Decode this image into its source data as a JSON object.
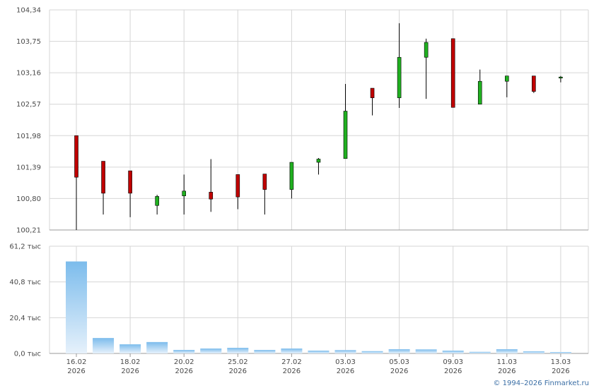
{
  "copyright": "© 1994–2026 Finmarket.ru",
  "colors": {
    "up": "#20b020",
    "down": "#c00000",
    "volume_top": "#7cbcec",
    "volume_bottom": "#e6f1fb",
    "grid": "#d6d6d6",
    "axis": "#9a9a9a"
  },
  "chart_data": [
    {
      "type": "candlestick",
      "title": "",
      "ylim": [
        100.21,
        104.34
      ],
      "yticks": [
        "104,34",
        "103,75",
        "103,16",
        "102,57",
        "101,98",
        "101,39",
        "100,80",
        "100,21"
      ],
      "ytick_values": [
        104.34,
        103.75,
        103.16,
        102.57,
        101.98,
        101.39,
        100.8,
        100.21
      ],
      "candles": [
        {
          "o": 101.98,
          "h": 101.98,
          "l": 100.21,
          "c": 101.2
        },
        {
          "o": 101.5,
          "h": 101.5,
          "l": 100.5,
          "c": 100.9
        },
        {
          "o": 101.32,
          "h": 101.32,
          "l": 100.45,
          "c": 100.9
        },
        {
          "o": 100.67,
          "h": 100.87,
          "l": 100.5,
          "c": 100.84
        },
        {
          "o": 100.85,
          "h": 101.25,
          "l": 100.5,
          "c": 100.94
        },
        {
          "o": 100.92,
          "h": 101.54,
          "l": 100.55,
          "c": 100.79
        },
        {
          "o": 101.25,
          "h": 101.25,
          "l": 100.6,
          "c": 100.83
        },
        {
          "o": 101.26,
          "h": 101.26,
          "l": 100.5,
          "c": 100.97
        },
        {
          "o": 100.97,
          "h": 101.48,
          "l": 100.8,
          "c": 101.48
        },
        {
          "o": 101.48,
          "h": 101.56,
          "l": 101.25,
          "c": 101.54
        },
        {
          "o": 101.55,
          "h": 102.95,
          "l": 101.55,
          "c": 102.44
        },
        {
          "o": 102.87,
          "h": 102.87,
          "l": 102.36,
          "c": 102.69
        },
        {
          "o": 102.69,
          "h": 104.09,
          "l": 102.5,
          "c": 103.45
        },
        {
          "o": 103.45,
          "h": 103.8,
          "l": 102.67,
          "c": 103.73
        },
        {
          "o": 103.8,
          "h": 103.8,
          "l": 102.51,
          "c": 102.51
        },
        {
          "o": 102.57,
          "h": 103.22,
          "l": 102.57,
          "c": 103.0
        },
        {
          "o": 103.0,
          "h": 103.1,
          "l": 102.7,
          "c": 103.1
        },
        {
          "o": 103.1,
          "h": 103.1,
          "l": 102.78,
          "c": 102.81
        },
        {
          "o": 103.08,
          "h": 103.1,
          "l": 102.98,
          "c": 103.08
        }
      ]
    },
    {
      "type": "bar",
      "title": "",
      "ylim": [
        0,
        61.2
      ],
      "yticks": [
        "61,2 тыс",
        "40,8 тыс",
        "20,4 тыс",
        "0,0 тыс"
      ],
      "ytick_values": [
        61.2,
        40.8,
        20.4,
        0
      ],
      "values": [
        52.5,
        8.8,
        5.2,
        6.5,
        2.0,
        2.8,
        3.2,
        2.0,
        2.8,
        1.6,
        1.9,
        1.3,
        2.4,
        2.3,
        1.6,
        0.9,
        2.4,
        1.2,
        0.8
      ]
    }
  ],
  "xaxis": {
    "labels": [
      {
        "index": 0,
        "date": "16.02",
        "year": "2026"
      },
      {
        "index": 2,
        "date": "18.02",
        "year": "2026"
      },
      {
        "index": 4,
        "date": "20.02",
        "year": "2026"
      },
      {
        "index": 6,
        "date": "25.02",
        "year": "2026"
      },
      {
        "index": 8,
        "date": "27.02",
        "year": "2026"
      },
      {
        "index": 10,
        "date": "03.03",
        "year": "2026"
      },
      {
        "index": 12,
        "date": "05.03",
        "year": "2026"
      },
      {
        "index": 14,
        "date": "09.03",
        "year": "2026"
      },
      {
        "index": 16,
        "date": "11.03",
        "year": "2026"
      },
      {
        "index": 18,
        "date": "13.03",
        "year": "2026"
      }
    ]
  }
}
